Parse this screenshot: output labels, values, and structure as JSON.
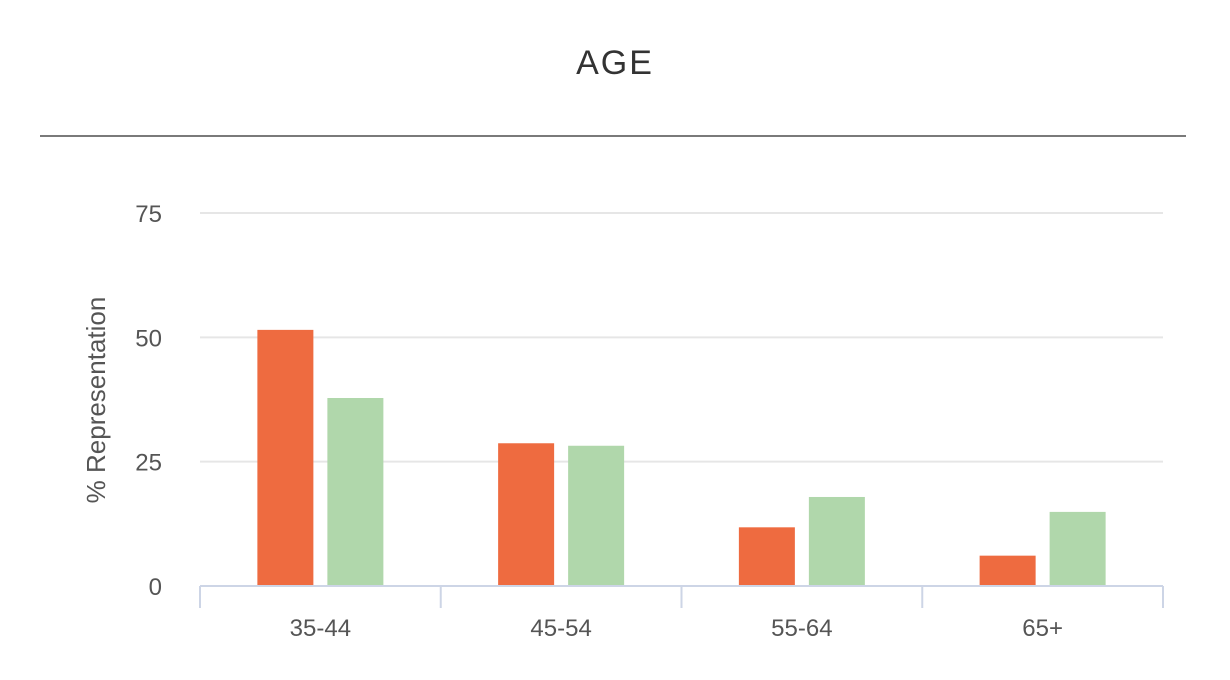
{
  "chart_data": {
    "type": "bar",
    "title": "AGE",
    "xlabel": "",
    "ylabel": "% Representation",
    "categories": [
      "35-44",
      "45-54",
      "55-64",
      "65+"
    ],
    "series": [
      {
        "values": [
          51.5,
          28.7,
          11.8,
          6.1
        ],
        "color": "#ee6b40"
      },
      {
        "values": [
          37.8,
          28.2,
          17.9,
          14.9
        ],
        "color": "#b0d7ab"
      }
    ],
    "ylim": [
      0,
      75
    ],
    "yticks": [
      "0",
      "25",
      "50",
      "75"
    ],
    "grid": true,
    "gridColor": "#e6e6e6",
    "axisColor": "#cdd5e6"
  }
}
